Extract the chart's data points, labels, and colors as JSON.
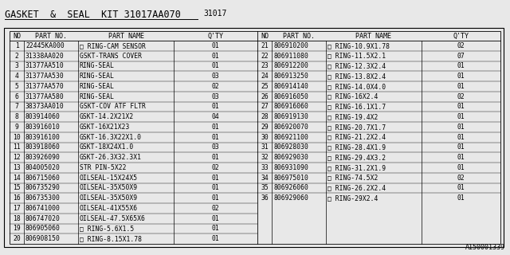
{
  "title": "GASKET  &  SEAL  KIT 31017AA070",
  "subtitle": "31017",
  "doc_number": "A150001339",
  "bg_color": "#f0f0f0",
  "left_data": [
    [
      "1",
      "22445KA000",
      "□ RING-CAM SENSOR",
      "01"
    ],
    [
      "2",
      "31338AA020",
      "GSKT-TRANS COVER",
      "01"
    ],
    [
      "3",
      "31377AA510",
      "RING-SEAL",
      "01"
    ],
    [
      "4",
      "31377AA530",
      "RING-SEAL",
      "03"
    ],
    [
      "5",
      "31377AA570",
      "RING-SEAL",
      "02"
    ],
    [
      "6",
      "31377AA580",
      "RING-SEAL",
      "03"
    ],
    [
      "7",
      "38373AA010",
      "GSKT-COV ATF FLTR",
      "01"
    ],
    [
      "8",
      "803914060",
      "GSKT-14.2X21X2",
      "04"
    ],
    [
      "9",
      "803916010",
      "GSKT-16X21X23",
      "01"
    ],
    [
      "10",
      "803916100",
      "GSKT-16.3X22X1.0",
      "01"
    ],
    [
      "11",
      "803918060",
      "GSKT-18X24X1.0",
      "03"
    ],
    [
      "12",
      "803926090",
      "GSKT-26.3X32.3X1",
      "01"
    ],
    [
      "13",
      "804005020",
      "STR PIN-5X22",
      "02"
    ],
    [
      "14",
      "806715060",
      "OILSEAL-15X24X5",
      "01"
    ],
    [
      "15",
      "806735290",
      "OILSEAL-35X50X9",
      "01"
    ],
    [
      "16",
      "806735300",
      "OILSEAL-35X50X9",
      "01"
    ],
    [
      "17",
      "806741000",
      "OILSEAL-41X55X6",
      "02"
    ],
    [
      "18",
      "806747020",
      "OILSEAL-47.5X65X6",
      "01"
    ],
    [
      "19",
      "806905060",
      "□ RING-5.6X1.5",
      "01"
    ],
    [
      "20",
      "806908150",
      "□ RING-8.15X1.78",
      "01"
    ]
  ],
  "right_data": [
    [
      "21",
      "806910200",
      "□ RING-10.9X1.78",
      "02"
    ],
    [
      "22",
      "806911080",
      "□ RING-11.5X2.1",
      "07"
    ],
    [
      "23",
      "806912200",
      "□ RING-12.3X2.4",
      "01"
    ],
    [
      "24",
      "806913250",
      "□ RING-13.8X2.4",
      "01"
    ],
    [
      "25",
      "806914140",
      "□ RING-14.0X4.0",
      "01"
    ],
    [
      "26",
      "806916050",
      "□ RING-16X2.4",
      "02"
    ],
    [
      "27",
      "806916060",
      "□ RING-16.1X1.7",
      "01"
    ],
    [
      "28",
      "806919130",
      "□ RING-19.4X2",
      "01"
    ],
    [
      "29",
      "806920070",
      "□ RING-20.7X1.7",
      "01"
    ],
    [
      "30",
      "806921100",
      "□ RING-21.2X2.4",
      "01"
    ],
    [
      "31",
      "806928030",
      "□ RING-28.4X1.9",
      "01"
    ],
    [
      "32",
      "806929030",
      "□ RING-29.4X3.2",
      "01"
    ],
    [
      "33",
      "806931090",
      "□ RING-31.2X1.9",
      "01"
    ],
    [
      "34",
      "806975010",
      "□ RING-74.5X2",
      "02"
    ],
    [
      "35",
      "806926060",
      "□ RING-26.2X2.4",
      "01"
    ],
    [
      "36",
      "806929060",
      "□ RING-29X2.4",
      "01"
    ]
  ],
  "title_fontsize": 8.5,
  "subtitle_fontsize": 7.0,
  "header_fontsize": 6.0,
  "data_fontsize": 5.8,
  "footer_fontsize": 6.0
}
